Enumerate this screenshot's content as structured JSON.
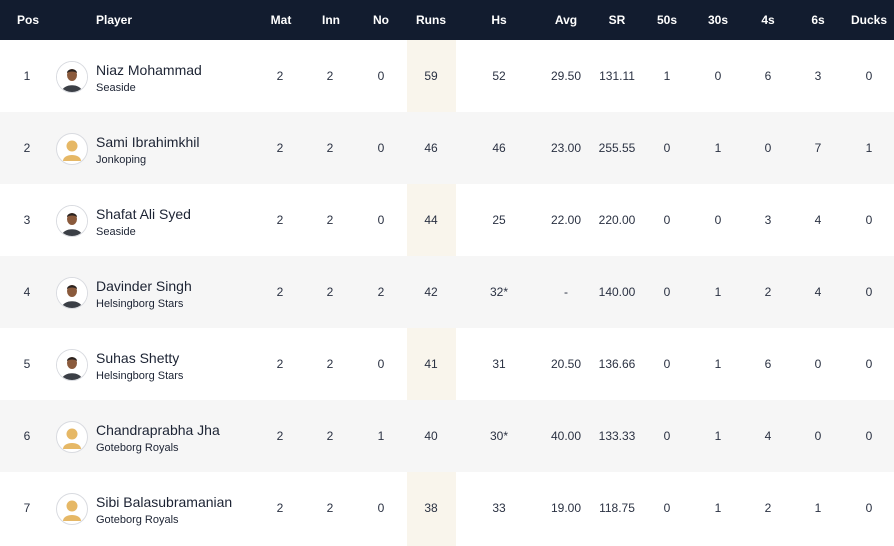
{
  "columns": {
    "pos": "Pos",
    "player": "Player",
    "mat": "Mat",
    "inn": "Inn",
    "no": "No",
    "runs": "Runs",
    "hs": "Hs",
    "avg": "Avg",
    "sr": "SR",
    "fifties": "50s",
    "thirties": "30s",
    "fours": "4s",
    "sixes": "6s",
    "ducks": "Ducks"
  },
  "rows": [
    {
      "pos": "1",
      "name": "Niaz Mohammad",
      "team": "Seaside",
      "mat": "2",
      "inn": "2",
      "no": "0",
      "runs": "59",
      "hs": "52",
      "avg": "29.50",
      "sr": "131.11",
      "fifties": "1",
      "thirties": "0",
      "fours": "6",
      "sixes": "3",
      "ducks": "0",
      "avatar": "player-photo"
    },
    {
      "pos": "2",
      "name": "Sami Ibrahimkhil",
      "team": "Jonkoping",
      "mat": "2",
      "inn": "2",
      "no": "0",
      "runs": "46",
      "hs": "46",
      "avg": "23.00",
      "sr": "255.55",
      "fifties": "0",
      "thirties": "1",
      "fours": "0",
      "sixes": "7",
      "ducks": "1",
      "avatar": "placeholder"
    },
    {
      "pos": "3",
      "name": "Shafat Ali Syed",
      "team": "Seaside",
      "mat": "2",
      "inn": "2",
      "no": "0",
      "runs": "44",
      "hs": "25",
      "avg": "22.00",
      "sr": "220.00",
      "fifties": "0",
      "thirties": "0",
      "fours": "3",
      "sixes": "4",
      "ducks": "0",
      "avatar": "player-photo"
    },
    {
      "pos": "4",
      "name": "Davinder Singh",
      "team": "Helsingborg Stars",
      "mat": "2",
      "inn": "2",
      "no": "2",
      "runs": "42",
      "hs": "32*",
      "avg": "-",
      "sr": "140.00",
      "fifties": "0",
      "thirties": "1",
      "fours": "2",
      "sixes": "4",
      "ducks": "0",
      "avatar": "player-photo"
    },
    {
      "pos": "5",
      "name": "Suhas Shetty",
      "team": "Helsingborg Stars",
      "mat": "2",
      "inn": "2",
      "no": "0",
      "runs": "41",
      "hs": "31",
      "avg": "20.50",
      "sr": "136.66",
      "fifties": "0",
      "thirties": "1",
      "fours": "6",
      "sixes": "0",
      "ducks": "0",
      "avatar": "player-photo"
    },
    {
      "pos": "6",
      "name": "Chandraprabha Jha",
      "team": "Goteborg Royals",
      "mat": "2",
      "inn": "2",
      "no": "1",
      "runs": "40",
      "hs": "30*",
      "avg": "40.00",
      "sr": "133.33",
      "fifties": "0",
      "thirties": "1",
      "fours": "4",
      "sixes": "0",
      "ducks": "0",
      "avatar": "placeholder"
    },
    {
      "pos": "7",
      "name": "Sibi Balasubramanian",
      "team": "Goteborg Royals",
      "mat": "2",
      "inn": "2",
      "no": "0",
      "runs": "38",
      "hs": "33",
      "avg": "19.00",
      "sr": "118.75",
      "fifties": "0",
      "thirties": "1",
      "fours": "2",
      "sixes": "1",
      "ducks": "0",
      "avatar": "placeholder"
    }
  ],
  "colors": {
    "header_bg": "#121c2f",
    "header_text": "#ffffff",
    "runs_highlight": "#f9f5ec",
    "row_alt": "#f6f6f6",
    "placeholder_avatar": "#e6b866"
  }
}
